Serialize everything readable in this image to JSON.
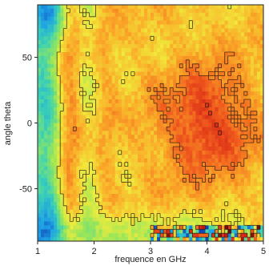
{
  "chart_data": {
    "type": "heatmap",
    "title": "",
    "xlabel": "frequence en GHz",
    "ylabel": "angle theta",
    "xlim": [
      1,
      5
    ],
    "ylim": [
      -90,
      90
    ],
    "x_ticks": [
      1,
      2,
      3,
      4,
      5
    ],
    "x_tick_labels": [
      "1",
      "2",
      "3",
      "4",
      "5"
    ],
    "y_ticks": [
      50,
      0,
      -50
    ],
    "y_tick_labels": [
      "50",
      "0",
      "-50"
    ],
    "colormap": "jet-like (blue-cyan-green-yellow-orange-red-dark red)",
    "grid": false,
    "legend": "none",
    "description_of_field": "Intensity is mostly orange/red across the plane; strongest (dark red) around 3.5-4.5 GHz near theta 0; lower (yellow/green) toward the left edge near 1 GHz and at theta below -60; speckled noise at high frequency near theta -90."
  }
}
